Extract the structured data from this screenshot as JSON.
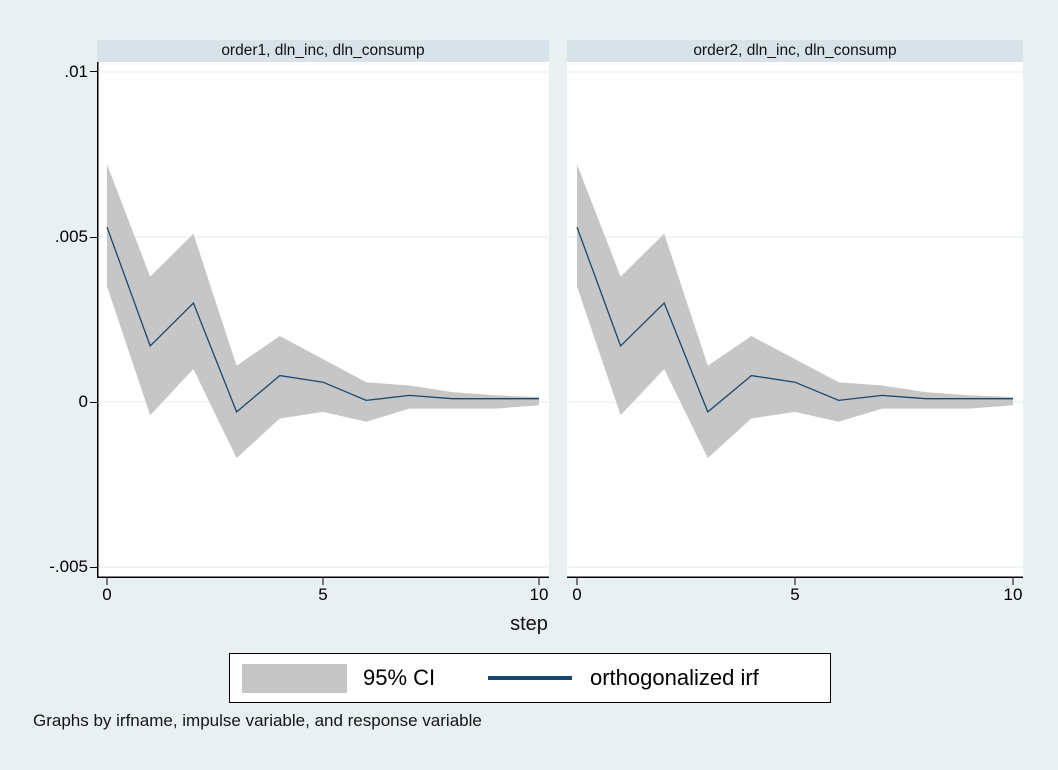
{
  "figure": {
    "caption": "Graphs by irfname, impulse variable, and response variable"
  },
  "colors": {
    "background": "#e9f0f2",
    "panel_title_band": "#d8e3e9",
    "plot_background": "#ffffff",
    "gridline": "#e2edf0",
    "ci_band": "#c6c6c6",
    "irf_line": "#1a476f",
    "axis": "#000000"
  },
  "chart_data": {
    "type": "line",
    "xlabel": "step",
    "x": [
      0,
      1,
      2,
      3,
      4,
      5,
      6,
      7,
      8,
      9,
      10
    ],
    "xticks": [
      0,
      5,
      10
    ],
    "xtick_labels": [
      "0",
      "5",
      "10"
    ],
    "xlim": [
      0,
      10
    ],
    "yticks": [
      0.01,
      0.005,
      0,
      -0.005
    ],
    "ytick_labels": [
      ".01",
      ".005",
      "0",
      "-.005"
    ],
    "ylim": [
      -0.005333,
      0.010303
    ],
    "grid": "horizontal-only",
    "legend_position": "bottom-center",
    "legend": [
      {
        "swatch": "area",
        "label": "95% CI",
        "color": "#c6c6c6"
      },
      {
        "swatch": "line",
        "label": "orthogonalized irf",
        "color": "#1a476f"
      }
    ],
    "panels": [
      {
        "title": "order1, dln_inc, dln_consump",
        "series": [
          {
            "name": "95% CI",
            "type": "band",
            "upper": [
              0.0072,
              0.0038,
              0.0051,
              0.0011,
              0.002,
              0.0013,
              0.0006,
              0.0005,
              0.0003,
              0.0002,
              0.00015
            ],
            "lower": [
              0.0035,
              -0.0004,
              0.001,
              -0.0017,
              -0.0005,
              -0.0003,
              -0.0006,
              -0.0002,
              -0.0002,
              -0.0002,
              -0.0001
            ]
          },
          {
            "name": "orthogonalized irf",
            "type": "line",
            "values": [
              0.0053,
              0.0017,
              0.003,
              -0.0003,
              0.0008,
              0.0006,
              5e-05,
              0.0002,
              0.0001,
              0.0001,
              0.0001
            ]
          }
        ]
      },
      {
        "title": "order2, dln_inc, dln_consump",
        "series": [
          {
            "name": "95% CI",
            "type": "band",
            "upper": [
              0.0072,
              0.0038,
              0.0051,
              0.0011,
              0.002,
              0.0013,
              0.0006,
              0.0005,
              0.0003,
              0.0002,
              0.00015
            ],
            "lower": [
              0.0035,
              -0.0004,
              0.001,
              -0.0017,
              -0.0005,
              -0.0003,
              -0.0006,
              -0.0002,
              -0.0002,
              -0.0002,
              -0.0001
            ]
          },
          {
            "name": "orthogonalized irf",
            "type": "line",
            "values": [
              0.0053,
              0.0017,
              0.003,
              -0.0003,
              0.0008,
              0.0006,
              5e-05,
              0.0002,
              0.0001,
              0.0001,
              0.0001
            ]
          }
        ]
      }
    ]
  }
}
